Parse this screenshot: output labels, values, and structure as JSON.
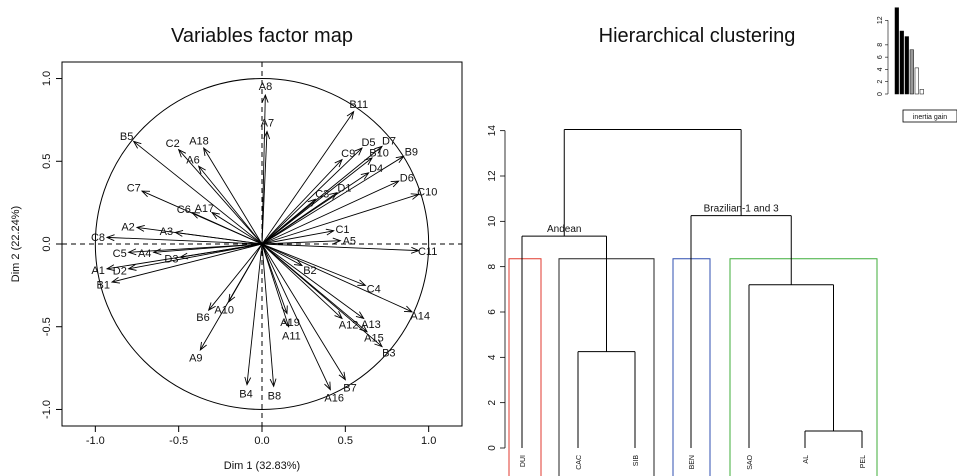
{
  "chart_data": [
    {
      "type": "scatter",
      "title": "Variables factor map",
      "xlabel": "Dim 1 (32.83%)",
      "ylabel": "Dim 2 (22.24%)",
      "xlim": [
        -1.2,
        1.2
      ],
      "ylim": [
        -1.1,
        1.1
      ],
      "xticks": [
        "-1.0",
        "-0.5",
        "0.0",
        "0.5",
        "1.0"
      ],
      "yticks": [
        "-1.0",
        "-0.5",
        "0.0",
        "0.5",
        "1.0"
      ],
      "x_tick_values": [
        -1.0,
        -0.5,
        0.0,
        0.5,
        1.0
      ],
      "y_tick_values": [
        -1.0,
        -0.5,
        0.0,
        0.5,
        1.0
      ],
      "correlation_circle": true,
      "vectors": [
        {
          "label": "A8",
          "x": 0.02,
          "y": 0.9
        },
        {
          "label": "A7",
          "x": 0.03,
          "y": 0.68
        },
        {
          "label": "B11",
          "x": 0.55,
          "y": 0.8
        },
        {
          "label": "B5",
          "x": -0.77,
          "y": 0.62
        },
        {
          "label": "C2",
          "x": -0.5,
          "y": 0.57
        },
        {
          "label": "A18",
          "x": -0.35,
          "y": 0.58
        },
        {
          "label": "A6",
          "x": -0.38,
          "y": 0.47
        },
        {
          "label": "C7",
          "x": -0.72,
          "y": 0.32
        },
        {
          "label": "C9",
          "x": 0.48,
          "y": 0.51
        },
        {
          "label": "D5",
          "x": 0.6,
          "y": 0.58
        },
        {
          "label": "D7",
          "x": 0.72,
          "y": 0.59
        },
        {
          "label": "B10",
          "x": 0.66,
          "y": 0.52
        },
        {
          "label": "B9",
          "x": 0.85,
          "y": 0.53
        },
        {
          "label": "D4",
          "x": 0.64,
          "y": 0.43
        },
        {
          "label": "D6",
          "x": 0.82,
          "y": 0.38
        },
        {
          "label": "C3",
          "x": 0.32,
          "y": 0.27
        },
        {
          "label": "D1",
          "x": 0.45,
          "y": 0.31
        },
        {
          "label": "C10",
          "x": 0.94,
          "y": 0.3
        },
        {
          "label": "C6",
          "x": -0.42,
          "y": 0.19
        },
        {
          "label": "A17",
          "x": -0.3,
          "y": 0.19
        },
        {
          "label": "C1",
          "x": 0.43,
          "y": 0.08
        },
        {
          "label": "A2",
          "x": -0.75,
          "y": 0.1
        },
        {
          "label": "A3",
          "x": -0.52,
          "y": 0.07
        },
        {
          "label": "A5",
          "x": 0.47,
          "y": 0.02
        },
        {
          "label": "C8",
          "x": -0.93,
          "y": 0.04
        },
        {
          "label": "C11",
          "x": 0.94,
          "y": -0.04
        },
        {
          "label": "C5",
          "x": -0.8,
          "y": -0.05
        },
        {
          "label": "A4",
          "x": -0.65,
          "y": -0.05
        },
        {
          "label": "D3",
          "x": -0.49,
          "y": -0.08
        },
        {
          "label": "A1",
          "x": -0.93,
          "y": -0.15
        },
        {
          "label": "D2",
          "x": -0.8,
          "y": -0.15
        },
        {
          "label": "B1",
          "x": -0.9,
          "y": -0.23
        },
        {
          "label": "B2",
          "x": 0.24,
          "y": -0.13
        },
        {
          "label": "C4",
          "x": 0.62,
          "y": -0.25
        },
        {
          "label": "A14",
          "x": 0.9,
          "y": -0.41
        },
        {
          "label": "A10",
          "x": -0.2,
          "y": -0.35
        },
        {
          "label": "B6",
          "x": -0.32,
          "y": -0.4
        },
        {
          "label": "A19",
          "x": 0.15,
          "y": -0.42
        },
        {
          "label": "A11",
          "x": 0.16,
          "y": -0.5
        },
        {
          "label": "A12",
          "x": 0.48,
          "y": -0.45
        },
        {
          "label": "A13",
          "x": 0.61,
          "y": -0.45
        },
        {
          "label": "A15",
          "x": 0.63,
          "y": -0.53
        },
        {
          "label": "B3",
          "x": 0.72,
          "y": -0.62
        },
        {
          "label": "A9",
          "x": -0.37,
          "y": -0.64
        },
        {
          "label": "B7",
          "x": 0.5,
          "y": -0.82
        },
        {
          "label": "A16",
          "x": 0.41,
          "y": -0.88
        },
        {
          "label": "B4",
          "x": -0.09,
          "y": -0.85
        },
        {
          "label": "B8",
          "x": 0.07,
          "y": -0.86
        }
      ]
    },
    {
      "type": "dendrogram",
      "title": "Hierarchical clustering",
      "ylim": [
        0,
        15
      ],
      "yticks": [
        "0",
        "2",
        "4",
        "6",
        "8",
        "10",
        "12",
        "14"
      ],
      "y_tick_values": [
        0,
        2,
        4,
        6,
        8,
        10,
        12,
        14
      ],
      "leaves": [
        "DUI",
        "CAC",
        "SIB",
        "BEN",
        "SAO",
        "AL",
        "PEL"
      ],
      "merges": [
        {
          "children": [
            "AL",
            "PEL"
          ],
          "height": 0.75
        },
        {
          "children": [
            "CAC",
            "SIB"
          ],
          "height": 4.25
        },
        {
          "children": [
            "SAO",
            "AL+PEL"
          ],
          "height": 7.2
        },
        {
          "children": [
            "DUI",
            "CAC+SIB"
          ],
          "height": 9.35
        },
        {
          "children": [
            "BEN",
            "SAO+AL+PEL"
          ],
          "height": 10.25
        },
        {
          "children": [
            "DUI+CAC+SIB",
            "BEN+SAO+AL+PEL"
          ],
          "height": 14.05
        }
      ],
      "annotations": [
        {
          "text": "Andean",
          "height": 9.35
        },
        {
          "text": "Brazilian-1 and 3",
          "height": 10.25
        }
      ],
      "cut_height": 8.35,
      "cluster_colors": [
        "#e03a2f",
        "#202020",
        "#2f4fb0",
        "#3fae3a"
      ],
      "inertia_gain": {
        "label": "inertia gain",
        "yticks": [
          "0",
          "2",
          "4",
          "6",
          "8",
          "12"
        ],
        "y_tick_values": [
          0,
          2,
          4,
          6,
          8,
          12
        ],
        "ylim": [
          0,
          14
        ],
        "values": [
          14.05,
          10.25,
          9.35,
          7.2,
          4.25,
          0.75
        ],
        "fills": [
          "#000000",
          "#000000",
          "#000000",
          "#999999",
          "#ffffff",
          "#ffffff"
        ]
      }
    }
  ]
}
